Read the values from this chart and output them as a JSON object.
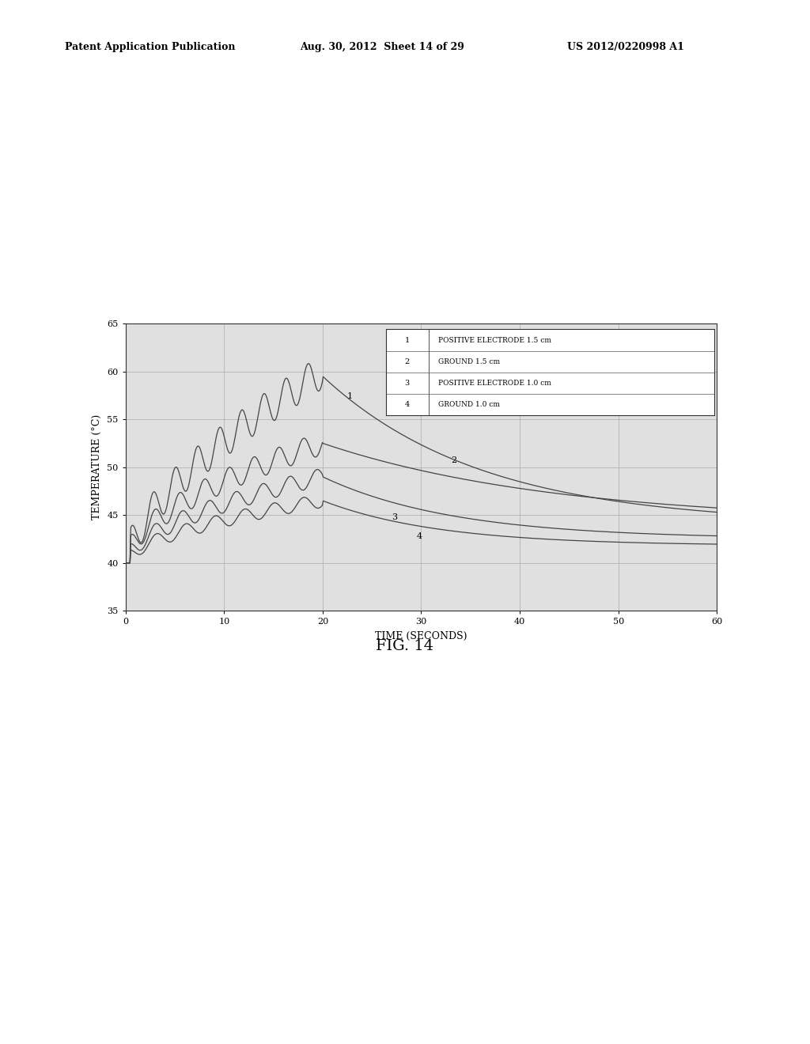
{
  "header_left": "Patent Application Publication",
  "header_mid": "Aug. 30, 2012  Sheet 14 of 29",
  "header_right": "US 2012/0220998 A1",
  "fig_label": "FIG. 14",
  "xlabel": "TIME (SECONDS)",
  "ylabel": "TEMPERATURE (°C)",
  "xlim": [
    0,
    60
  ],
  "ylim": [
    35,
    65
  ],
  "xticks": [
    0,
    10,
    20,
    30,
    40,
    50,
    60
  ],
  "yticks": [
    35,
    40,
    45,
    50,
    55,
    60,
    65
  ],
  "legend_entries": [
    [
      "1",
      "POSITIVE ELECTRODE 1.5 cm"
    ],
    [
      "2",
      "GROUND 1.5 cm"
    ],
    [
      "3",
      "POSITIVE ELECTRODE 1.0 cm"
    ],
    [
      "4",
      "GROUND 1.0 cm"
    ]
  ],
  "bg_color": "#ffffff",
  "plot_bg_color": "#e0e0e0",
  "line_color": "#444444",
  "grid_color": "#aaaaaa",
  "header_fontsize": 9,
  "axis_fontsize": 8,
  "label_fontsize": 9,
  "fig_label_fontsize": 14
}
